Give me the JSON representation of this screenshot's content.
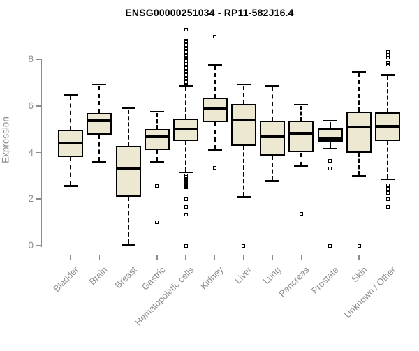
{
  "title": "ENSG00000251034 - RP11-582J16.4",
  "chart_data": {
    "type": "boxplot",
    "title": "ENSG00000251034 - RP11-582J16.4",
    "xlabel": "",
    "ylabel": "Expression",
    "ylim": [
      0,
      9.4
    ],
    "yticks": [
      0,
      2,
      4,
      6,
      8
    ],
    "grid": false,
    "legend": "none",
    "box_fill_color": "#ede8d1",
    "box_border_color": "#000000",
    "axis_color": "#8c8c8c",
    "categories": [
      "Bladder",
      "Brain",
      "Breast",
      "Gastric",
      "Hematopoietic cells",
      "Kidney",
      "Liver",
      "Lung",
      "Pancreas",
      "Prostate",
      "Skin",
      "Unknown / Other"
    ],
    "series": [
      {
        "name": "Bladder",
        "whisker_low": 2.57,
        "q1": 3.8,
        "median": 4.4,
        "q3": 4.97,
        "whisker_high": 6.47,
        "outliers": []
      },
      {
        "name": "Brain",
        "whisker_low": 3.6,
        "q1": 4.76,
        "median": 5.36,
        "q3": 5.7,
        "whisker_high": 6.92,
        "outliers": []
      },
      {
        "name": "Breast",
        "whisker_low": 0.05,
        "q1": 2.1,
        "median": 3.3,
        "q3": 4.28,
        "whisker_high": 5.9,
        "outliers": []
      },
      {
        "name": "Gastric",
        "whisker_low": 3.6,
        "q1": 4.1,
        "median": 4.67,
        "q3": 5.0,
        "whisker_high": 5.75,
        "outliers": [
          2.55,
          1.0
        ]
      },
      {
        "name": "Hematopoietic cells",
        "whisker_low": 3.15,
        "q1": 4.5,
        "median": 5.0,
        "q3": 5.45,
        "whisker_high": 6.85,
        "outliers": [
          9.27,
          8.78,
          8.72,
          8.66,
          8.6,
          8.54,
          8.48,
          8.42,
          8.36,
          8.3,
          8.24,
          8.18,
          8.12,
          8.06,
          8.0,
          7.94,
          7.88,
          7.82,
          7.76,
          7.7,
          7.64,
          7.58,
          7.52,
          7.46,
          7.4,
          7.34,
          7.28,
          7.22,
          7.16,
          7.1,
          7.04,
          6.98,
          3.0,
          2.95,
          2.9,
          2.85,
          2.8,
          2.75,
          2.7,
          2.65,
          2.6,
          2.55,
          2.5,
          2.0,
          1.66,
          1.33,
          0.0
        ]
      },
      {
        "name": "Kidney",
        "whisker_low": 4.1,
        "q1": 5.3,
        "median": 5.87,
        "q3": 6.35,
        "whisker_high": 7.76,
        "outliers": [
          8.97,
          3.33
        ]
      },
      {
        "name": "Liver",
        "whisker_low": 2.09,
        "q1": 4.28,
        "median": 5.4,
        "q3": 6.07,
        "whisker_high": 6.93,
        "outliers": [
          0.0
        ]
      },
      {
        "name": "Lung",
        "whisker_low": 2.78,
        "q1": 3.85,
        "median": 4.67,
        "q3": 5.37,
        "whisker_high": 6.87,
        "outliers": []
      },
      {
        "name": "Pancreas",
        "whisker_low": 3.4,
        "q1": 4.0,
        "median": 4.83,
        "q3": 5.35,
        "whisker_high": 6.05,
        "outliers": [
          1.36
        ]
      },
      {
        "name": "Prostate",
        "whisker_low": 4.17,
        "q1": 4.47,
        "median": 4.6,
        "q3": 5.02,
        "whisker_high": 5.37,
        "outliers": [
          3.65,
          3.3,
          0.0
        ]
      },
      {
        "name": "Skin",
        "whisker_low": 3.0,
        "q1": 4.0,
        "median": 5.1,
        "q3": 5.75,
        "whisker_high": 7.46,
        "outliers": [
          0.0
        ]
      },
      {
        "name": "Unknown / Other",
        "whisker_low": 2.85,
        "q1": 4.5,
        "median": 5.13,
        "q3": 5.73,
        "whisker_high": 7.33,
        "outliers": [
          8.3,
          8.2,
          8.08,
          7.85,
          7.79,
          2.58,
          2.44,
          2.26,
          2.0,
          1.67
        ]
      }
    ]
  }
}
